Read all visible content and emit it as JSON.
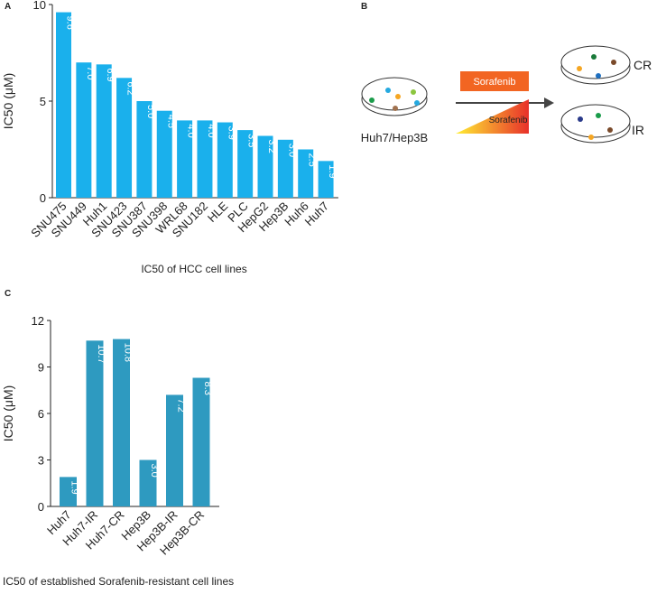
{
  "chart_data": [
    {
      "type": "bar",
      "panel": "A",
      "x_label": "IC50 of HCC cell lines",
      "y_label": "IC50 (μM)",
      "categories": [
        "SNU475",
        "SNU449",
        "Huh1",
        "SNU423",
        "SNU387",
        "SNU398",
        "WRL68",
        "SNU182",
        "HLE",
        "PLC",
        "HepG2",
        "Hep3B",
        "Huh6",
        "Huh7"
      ],
      "values": [
        9.6,
        7.0,
        6.9,
        6.2,
        5.0,
        4.5,
        4.0,
        4.0,
        3.9,
        3.5,
        3.2,
        3.0,
        2.5,
        1.9
      ],
      "value_labels": [
        "9.6",
        "7.0",
        "6.9",
        "6.2",
        "5.0",
        "4.5",
        "4.0",
        "4.0",
        "3.9",
        "3.5",
        "3.2",
        "3.0",
        "2.5",
        "1.9"
      ],
      "color": "#1ab0ec",
      "ylim": [
        0,
        10
      ],
      "yticks": [
        0,
        5,
        10
      ]
    },
    {
      "type": "bar",
      "panel": "C",
      "x_label": "IC50 of established Sorafenib-resistant cell lines",
      "y_label": "IC50 (μM)",
      "categories": [
        "Huh7",
        "Huh7-IR",
        "Huh7-CR",
        "Hep3B",
        "Hep3B-IR",
        "Hep3B-CR"
      ],
      "values": [
        1.9,
        10.7,
        10.8,
        3.0,
        7.2,
        8.3
      ],
      "value_labels": [
        "1.9",
        "10.7",
        "10.8",
        "3.0",
        "7.2",
        "8.3"
      ],
      "color": "#2e9ac0",
      "ylim": [
        0,
        12
      ],
      "yticks": [
        0,
        3,
        6,
        9,
        12
      ]
    }
  ],
  "diagram": {
    "panel": "B",
    "source": "Huh7/Hep3B",
    "drug_constant": "Sorafenib",
    "drug_increasing": "Sorafenib",
    "result_1": "CR",
    "result_2": "IR"
  }
}
